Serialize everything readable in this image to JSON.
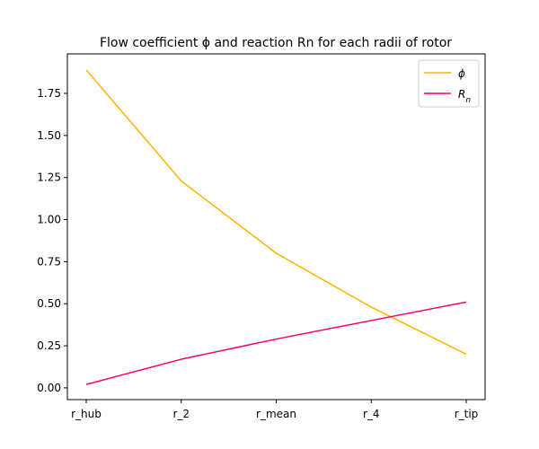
{
  "chart_data": {
    "type": "line",
    "title": "Flow coefficient ϕ and reaction Rn for each radii of rotor",
    "categories": [
      "r_hub",
      "r_2",
      "r_mean",
      "r_4",
      "r_tip"
    ],
    "series": [
      {
        "name": "ϕ",
        "values": [
          1.89,
          1.23,
          0.8,
          0.48,
          0.2
        ],
        "color": "#ffb300"
      },
      {
        "name": "R_n",
        "values": [
          0.02,
          0.17,
          0.29,
          0.4,
          0.51
        ],
        "color": "#ff0066"
      }
    ],
    "ylim": [
      -0.07,
      1.985
    ],
    "yticks": [
      0.0,
      0.25,
      0.5,
      0.75,
      1.0,
      1.25,
      1.5,
      1.75
    ],
    "ytick_labels": [
      "0.00",
      "0.25",
      "0.50",
      "0.75",
      "1.00",
      "1.25",
      "1.50",
      "1.75"
    ],
    "grid": false,
    "legend": "top-right"
  }
}
